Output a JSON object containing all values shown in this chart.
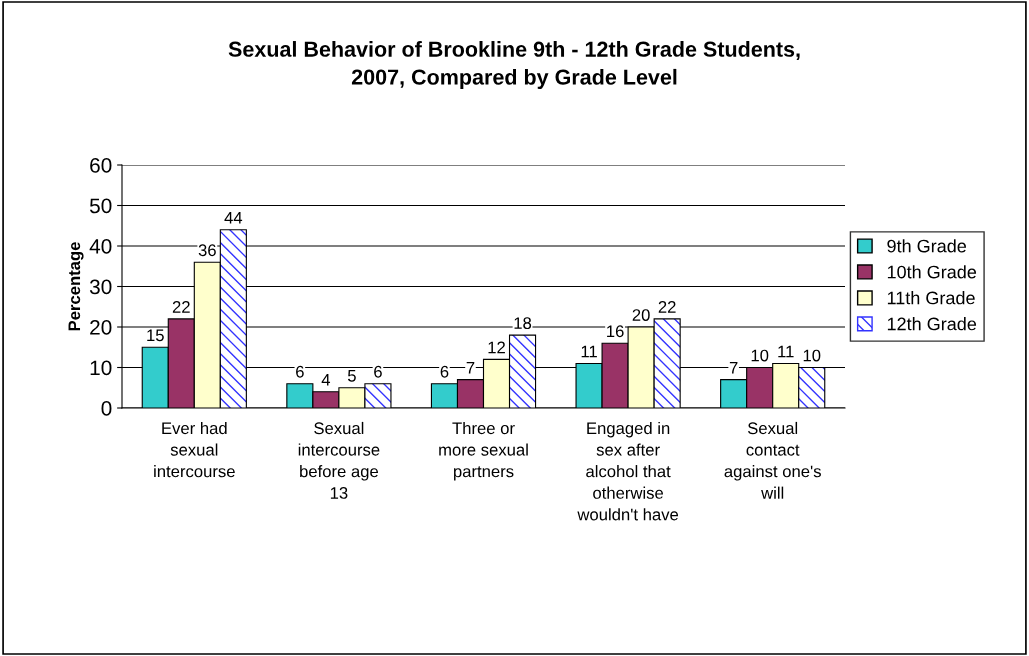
{
  "chart_data": {
    "type": "bar",
    "title": "Sexual Behavior of Brookline 9th - 12th Grade Students,\n2007, Compared by Grade Level",
    "ylabel": "Percentage",
    "categories": [
      "Ever had\nsexual\nintercourse",
      "Sexual\nintercourse\nbefore age\n13",
      "Three or\nmore sexual\npartners",
      "Engaged in\nsex after\nalcohol that\notherwise\nwouldn't have",
      "Sexual\ncontact\nagainst one's\nwill"
    ],
    "series": [
      {
        "name": "9th Grade",
        "color": "#33cccc",
        "values": [
          15,
          6,
          6,
          11,
          7
        ]
      },
      {
        "name": "10th Grade",
        "color": "#993366",
        "values": [
          22,
          4,
          7,
          16,
          10
        ]
      },
      {
        "name": "11th Grade",
        "color": "#ffffcc",
        "values": [
          36,
          5,
          12,
          20,
          11
        ]
      },
      {
        "name": "12th Grade",
        "color": "#3333ff",
        "values": [
          44,
          6,
          18,
          22,
          10
        ]
      }
    ],
    "ylim": [
      0,
      60
    ],
    "yticks": [
      0,
      10,
      20,
      30,
      40,
      50,
      60
    ],
    "grid": "y",
    "legend": "right",
    "data_labels": true
  }
}
